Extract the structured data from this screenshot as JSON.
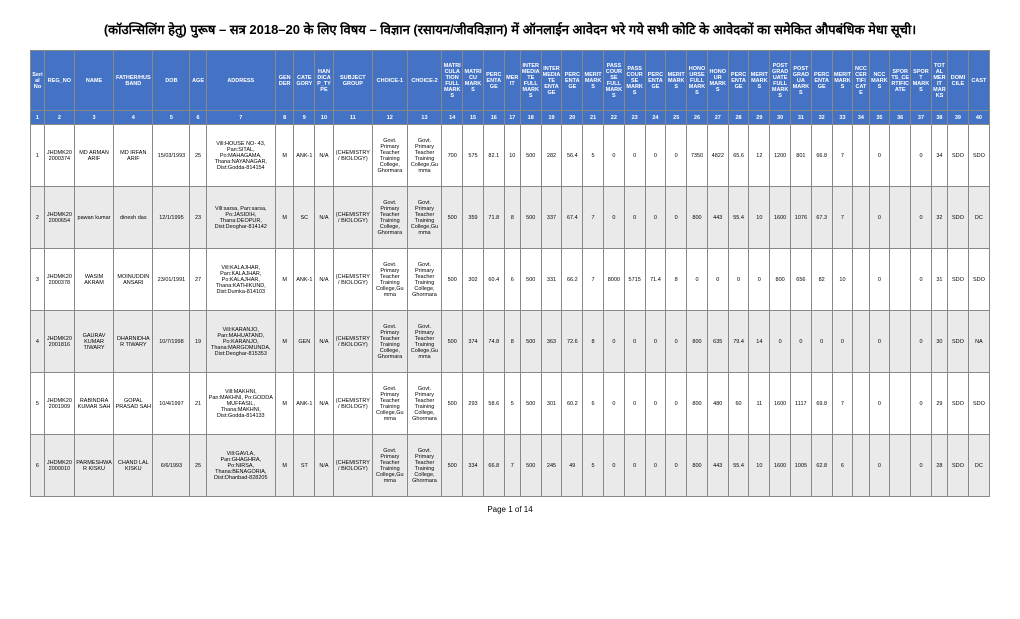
{
  "title": "(कॉउन्सिलिंग हेतु) पुरूष – सत्र 2018–20 के लिए विषय – विज्ञान (रसायन/जीवविज्ञान) में ऑनलाईन आवेदन भरे गये सभी कोटि के आवेदकों का समेकित औपबंधिक मेधा सूची।",
  "footer": "Page 1 of 14",
  "headers": [
    "Serial No",
    "REG_NO",
    "NAME",
    "FATHER/HUSBAND",
    "DOB",
    "AGE",
    "ADDRESS",
    "GENDER",
    "CATEGORY",
    "HANDICAP_TYPE",
    "SUBJECT GROUP",
    "CHOICE-1",
    "CHOICE-2",
    "MATRICULATION FULL MARKS",
    "MATRICU MARKS",
    "PERCENTAGE",
    "MERIT",
    "INTERMEDIATE FULL MARKS",
    "INTERMEDIATE ENTAGE",
    "PERCENTAGE",
    "MERIT MARKS",
    "PASS COURSE FULL MARKS",
    "PASS COURSE MARKS",
    "PERCENTAGE",
    "MERIT MARKS",
    "HONOURSE FULL MARKS",
    "HONOUR MARKS",
    "PERCENTAGE",
    "MERIT MARKS",
    "POST GRADUATE FULL MARKS",
    "POST GRADUA MARKS",
    "PERCENTAGE",
    "MERIT MARKS",
    "NCC CERTIFICATE",
    "NCC MARKS",
    "SPORTS_CERTIFICATE",
    "SPORT MARKS",
    "TOTAL MERIT MARKS",
    "DOMICILE",
    "CAST"
  ],
  "numbers": [
    "1",
    "2",
    "3",
    "4",
    "5",
    "6",
    "7",
    "8",
    "9",
    "10",
    "11",
    "12",
    "13",
    "14",
    "15",
    "16",
    "17",
    "18",
    "19",
    "20",
    "21",
    "22",
    "23",
    "24",
    "25",
    "26",
    "27",
    "28",
    "29",
    "30",
    "31",
    "32",
    "33",
    "34",
    "35",
    "36",
    "37",
    "38",
    "39",
    "40"
  ],
  "rows": [
    {
      "alt": false,
      "cells": [
        "1",
        "JHDMK202000374",
        "MD ARMAN ARIF",
        "MD IRFAN ARIF",
        "15/03/1993",
        "25",
        "Vill:HOUSE NO- 43, Pan:SITAL, Po:MAHAGAMA, Thana:NAYANAGAR, Dist:Godda-814154",
        "M",
        "ANK-1",
        "N/A",
        "(CHEMISTRY / BIOLOGY)",
        "Govt. Primary Teacher Training College, Ghormara",
        "Govt. Primary Teacher Training College,Gumma",
        "700",
        "575",
        "82.1",
        "10",
        "500",
        "282",
        "56.4",
        "5",
        "0",
        "0",
        "0",
        "0",
        "7350",
        "4822",
        "65.6",
        "12",
        "1200",
        "801",
        "66.8",
        "7",
        "",
        "0",
        "",
        "0",
        "34",
        "SDO",
        "SDO"
      ]
    },
    {
      "alt": true,
      "cells": [
        "2",
        "JHDMK202000654",
        "pawan kumar",
        "dinesh das",
        "12/1/1995",
        "23",
        "Vill:sarsa, Pan:sarsa, Po:JASIDIH, Thana:DEOPUR, Dist:Deoghar-814142",
        "M",
        "SC",
        "N/A",
        "(CHEMISTRY / BIOLOGY)",
        "Govt. Primary Teacher Training College, Ghormara",
        "Govt. Primary Teacher Training College,Gumma",
        "500",
        "359",
        "71.8",
        "8",
        "500",
        "337",
        "67.4",
        "7",
        "0",
        "0",
        "0",
        "0",
        "800",
        "443",
        "55.4",
        "10",
        "1600",
        "1076",
        "67.3",
        "7",
        "",
        "0",
        "",
        "0",
        "32",
        "SDO",
        "DC"
      ]
    },
    {
      "alt": false,
      "cells": [
        "3",
        "JHDMK202000378",
        "WASIM AKRAM",
        "MOINUDDIN ANSARI",
        "23/01/1991",
        "27",
        "Vill:KALAJHAR, Pan:KALAJHAR, Po:KALAJHAR, Thana:KATHIKUND, Dist:Dumka-814103",
        "M",
        "ANK-1",
        "N/A",
        "(CHEMISTRY / BIOLOGY)",
        "Govt. Primary Teacher Training College,Gumma",
        "Govt. Primary Teacher Training College, Ghormara",
        "500",
        "302",
        "60.4",
        "6",
        "500",
        "331",
        "66.2",
        "7",
        "8000",
        "5715",
        "71.4",
        "8",
        "0",
        "0",
        "0",
        "0",
        "800",
        "656",
        "82",
        "10",
        "",
        "0",
        "",
        "0",
        "31",
        "SDO",
        "SDO"
      ]
    },
    {
      "alt": true,
      "cells": [
        "4",
        "JHDMK202001816",
        "GAURAV KUMAR TIWARY",
        "DHARNIDHAR TIWARY",
        "10/7/1998",
        "19",
        "Vill:KARANJO, Pan:MAHUATAND, Po:KARANJO, Thana:MARGOMUNDA, Dist:Deoghar-815353",
        "M",
        "GEN",
        "N/A",
        "(CHEMISTRY / BIOLOGY)",
        "Govt. Primary Teacher Training College, Ghormara",
        "Govt. Primary Teacher Training College,Gumma",
        "500",
        "374",
        "74.8",
        "8",
        "500",
        "363",
        "72.6",
        "8",
        "0",
        "0",
        "0",
        "0",
        "800",
        "635",
        "79.4",
        "14",
        "0",
        "0",
        "0",
        "0",
        "",
        "0",
        "",
        "0",
        "30",
        "SDO",
        "NA"
      ]
    },
    {
      "alt": false,
      "cells": [
        "5",
        "JHDMK202001909",
        "RABINDRA KUMAR SAH",
        "GOPAL PRASAD SAH",
        "10/4/1997",
        "21",
        "Vill:MAKHNI, Pan:MAKHNI, Po:GODDA MUFFASIL, Thana:MAKHNI, Dist:Godda-814133",
        "M",
        "ANK-1",
        "N/A",
        "(CHEMISTRY / BIOLOGY)",
        "Govt. Primary Teacher Training College,Gumma",
        "Govt. Primary Teacher Training College, Ghormara",
        "500",
        "293",
        "58.6",
        "5",
        "500",
        "301",
        "60.2",
        "6",
        "0",
        "0",
        "0",
        "0",
        "800",
        "480",
        "60",
        "11",
        "1600",
        "1117",
        "69.8",
        "7",
        "",
        "0",
        "",
        "0",
        "29",
        "SDO",
        "SDO"
      ]
    },
    {
      "alt": true,
      "cells": [
        "6",
        "JHDMK202000010",
        "PARMESHWAR KISKU",
        "CHAND LAL KISKU",
        "6/6/1993",
        "25",
        "Vill:GAVLA, Pan:GHAGHRA, Po:NIRSA, Thana:BENAGORIA, Dist:Dhanbad-828205",
        "M",
        "ST",
        "N/A",
        "(CHEMISTRY / BIOLOGY)",
        "Govt. Primary Teacher Training College,Gumma",
        "Govt. Primary Teacher Training College, Ghormara",
        "500",
        "334",
        "66.8",
        "7",
        "500",
        "245",
        "49",
        "5",
        "0",
        "0",
        "0",
        "0",
        "800",
        "443",
        "55.4",
        "10",
        "1600",
        "1005",
        "62.8",
        "6",
        "",
        "0",
        "",
        "0",
        "28",
        "SDO",
        "DC"
      ]
    }
  ]
}
